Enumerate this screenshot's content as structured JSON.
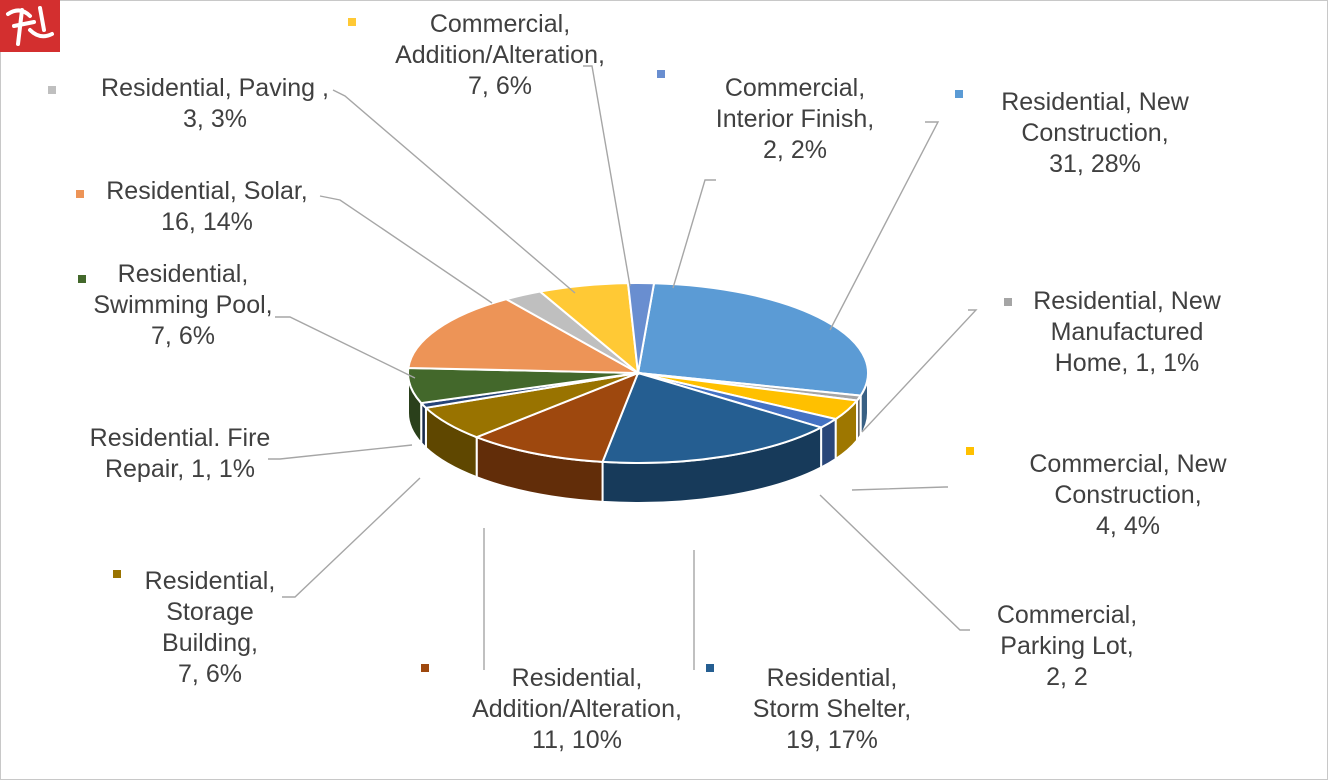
{
  "colors": {
    "logo": "#d32f2f",
    "leader": "#a6a6a6",
    "label_text": "#404040"
  },
  "chart_data": {
    "type": "pie",
    "variant": "3d",
    "title": "",
    "slices": [
      {
        "name": "Residential, New Construction",
        "value": 31,
        "percent": "28%",
        "color": "#5b9bd5",
        "label_lines": [
          "Residential, New",
          "Construction,",
          "31, 28%"
        ]
      },
      {
        "name": "Residential, New Manufactured Home",
        "value": 1,
        "percent": "1%",
        "color": "#a5a5a5",
        "label_lines": [
          "Residential, New",
          "Manufactured",
          "Home, 1, 1%"
        ]
      },
      {
        "name": "Commercial, New Construction",
        "value": 4,
        "percent": "4%",
        "color": "#ffc000",
        "label_lines": [
          "Commercial, New",
          "Construction,",
          "4, 4%"
        ]
      },
      {
        "name": "Commercial, Parking Lot",
        "value": 2,
        "percent": "2",
        "color": "#4472c4",
        "label_lines": [
          "Commercial,",
          "Parking Lot,",
          "2, 2"
        ]
      },
      {
        "name": "Residential, Storm Shelter",
        "value": 19,
        "percent": "17%",
        "color": "#255e91",
        "label_lines": [
          "Residential,",
          "Storm Shelter,",
          "19, 17%"
        ]
      },
      {
        "name": "Residential, Addition/Alteration",
        "value": 11,
        "percent": "10%",
        "color": "#9e480e",
        "label_lines": [
          "Residential,",
          "Addition/Alteration,",
          "11, 10%"
        ]
      },
      {
        "name": "Residential, Storage Building",
        "value": 7,
        "percent": "6%",
        "color": "#997300",
        "label_lines": [
          "Residential,",
          "Storage",
          "Building,",
          "7, 6%"
        ]
      },
      {
        "name": "Residential. Fire Repair",
        "value": 1,
        "percent": "1%",
        "color": "#264478",
        "label_lines": [
          "Residential. Fire",
          "Repair, 1, 1%"
        ]
      },
      {
        "name": "Residential, Swimming Pool",
        "value": 7,
        "percent": "6%",
        "color": "#43682b",
        "label_lines": [
          "Residential,",
          "Swimming Pool,",
          "7, 6%"
        ]
      },
      {
        "name": "Residential, Solar",
        "value": 16,
        "percent": "14%",
        "color": "#ed9457",
        "label_lines": [
          "Residential, Solar,",
          "16, 14%"
        ]
      },
      {
        "name": "Residential, Paving",
        "value": 3,
        "percent": "3%",
        "color": "#bfbfbf",
        "label_lines": [
          "Residential, Paving ,",
          "3, 3%"
        ]
      },
      {
        "name": "Commercial, Addition/Alteration",
        "value": 7,
        "percent": "6%",
        "color": "#ffc935",
        "label_lines": [
          "Commercial,",
          "Addition/Alteration,",
          "7, 6%"
        ]
      },
      {
        "name": "Commercial, Interior Finish",
        "value": 2,
        "percent": "2%",
        "color": "#698ed0",
        "label_lines": [
          "Commercial,",
          "Interior Finish,",
          "2, 2%"
        ]
      }
    ]
  }
}
